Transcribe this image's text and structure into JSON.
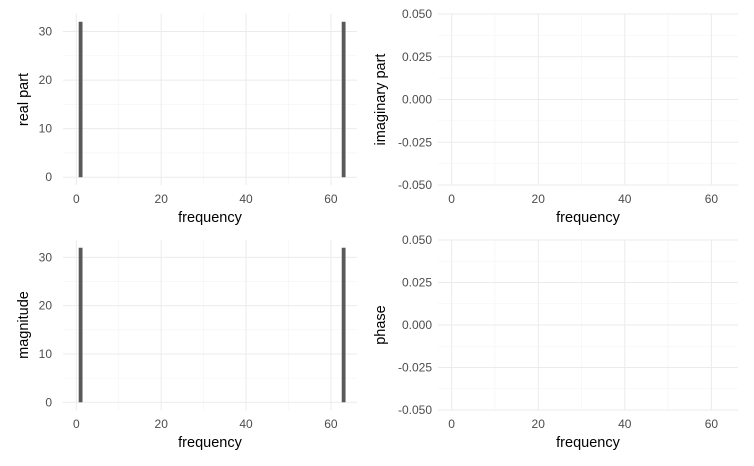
{
  "chart_data": [
    {
      "type": "bar",
      "id": "real-part",
      "xlabel": "frequency",
      "ylabel": "real part",
      "xlim": [
        -3.15,
        66.15
      ],
      "ylim": [
        -1.6,
        33.6
      ],
      "xticks": [
        0,
        20,
        40,
        60
      ],
      "xtick_labels": [
        "0",
        "20",
        "40",
        "60"
      ],
      "yticks": [
        0,
        10,
        20,
        30
      ],
      "ytick_labels": [
        "0",
        "10",
        "20",
        "30"
      ],
      "grid": true,
      "x": [
        1,
        63
      ],
      "values": [
        32,
        32
      ],
      "bar_color": "#595959"
    },
    {
      "type": "bar",
      "id": "imaginary-part",
      "xlabel": "frequency",
      "ylabel": "imaginary part",
      "xlim": [
        -3.15,
        66.15
      ],
      "ylim": [
        -0.05,
        0.05
      ],
      "xticks": [
        0,
        20,
        40,
        60
      ],
      "xtick_labels": [
        "0",
        "20",
        "40",
        "60"
      ],
      "yticks": [
        -0.05,
        -0.025,
        0,
        0.025,
        0.05
      ],
      "ytick_labels": [
        "-0.050",
        "-0.025",
        "0.000",
        "0.025",
        "0.050"
      ],
      "grid": true,
      "x": [],
      "values": [],
      "bar_color": "#595959"
    },
    {
      "type": "bar",
      "id": "magnitude",
      "xlabel": "frequency",
      "ylabel": "magnitude",
      "xlim": [
        -3.15,
        66.15
      ],
      "ylim": [
        -1.6,
        33.6
      ],
      "xticks": [
        0,
        20,
        40,
        60
      ],
      "xtick_labels": [
        "0",
        "20",
        "40",
        "60"
      ],
      "yticks": [
        0,
        10,
        20,
        30
      ],
      "ytick_labels": [
        "0",
        "10",
        "20",
        "30"
      ],
      "grid": true,
      "x": [
        1,
        63
      ],
      "values": [
        32,
        32
      ],
      "bar_color": "#595959"
    },
    {
      "type": "bar",
      "id": "phase",
      "xlabel": "frequency",
      "ylabel": "phase",
      "xlim": [
        -3.15,
        66.15
      ],
      "ylim": [
        -0.05,
        0.05
      ],
      "xticks": [
        0,
        20,
        40,
        60
      ],
      "xtick_labels": [
        "0",
        "20",
        "40",
        "60"
      ],
      "yticks": [
        -0.05,
        -0.025,
        0,
        0.025,
        0.05
      ],
      "ytick_labels": [
        "-0.050",
        "-0.025",
        "0.000",
        "0.025",
        "0.050"
      ],
      "grid": true,
      "x": [],
      "values": [],
      "bar_color": "#595959"
    }
  ]
}
